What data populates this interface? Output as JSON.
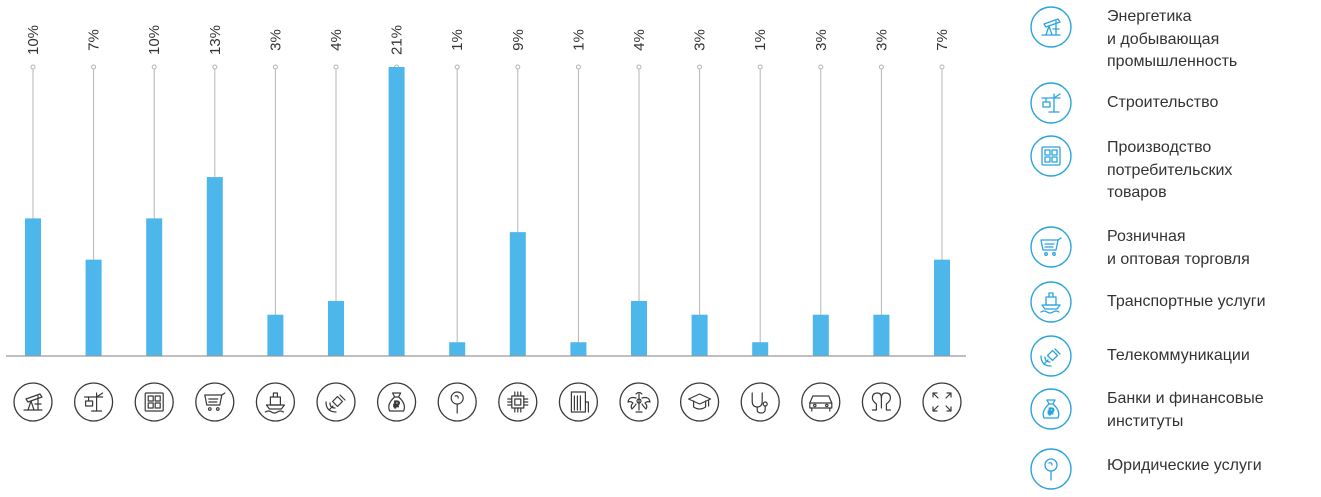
{
  "chart_data": {
    "type": "bar",
    "categories": [
      "energy-mining-icon",
      "construction-icon",
      "consumer-goods-icon",
      "retail-cart-icon",
      "transport-ship-icon",
      "telecom-satellite-icon",
      "banking-moneybag-icon",
      "legal-pin-icon",
      "chip-icon",
      "building-icon",
      "emblem-icon",
      "education-cap-icon",
      "medicine-stethoscope-icon",
      "automotive-car-icon",
      "pharma-icon",
      "other-expand-icon"
    ],
    "values": [
      10,
      7,
      10,
      13,
      3,
      4,
      21,
      1,
      9,
      1,
      4,
      3,
      1,
      3,
      3,
      7
    ],
    "value_labels": [
      "10%",
      "7%",
      "10%",
      "13%",
      "3%",
      "4%",
      "21%",
      "1%",
      "9%",
      "1%",
      "4%",
      "3%",
      "1%",
      "3%",
      "3%",
      "7%"
    ],
    "ylim": [
      0,
      22
    ],
    "title": "",
    "xlabel": "",
    "ylabel": "",
    "grid": false,
    "colors": {
      "bar": "#4db6ea",
      "leader_line": "#b5b5b5",
      "baseline": "#999999",
      "icon": "#3a3a3a",
      "legend_icon": "#2aa4dd"
    }
  },
  "legend": {
    "items": [
      {
        "icon": "energy-mining-icon",
        "label": "Энергетика\nи добывающая\nпромышленность"
      },
      {
        "icon": "construction-icon",
        "label": "Строительство"
      },
      {
        "icon": "consumer-goods-icon",
        "label": "Производство\nпотребительских\nтоваров"
      },
      {
        "icon": "retail-cart-icon",
        "label": "Розничная\nи оптовая торговля"
      },
      {
        "icon": "transport-ship-icon",
        "label": "Транспортные услуги"
      },
      {
        "icon": "telecom-satellite-icon",
        "label": "Телекоммуникации"
      },
      {
        "icon": "banking-moneybag-icon",
        "label": "Банки и финансовые\nинституты"
      },
      {
        "icon": "legal-pin-icon",
        "label": "Юридические услуги"
      }
    ]
  }
}
